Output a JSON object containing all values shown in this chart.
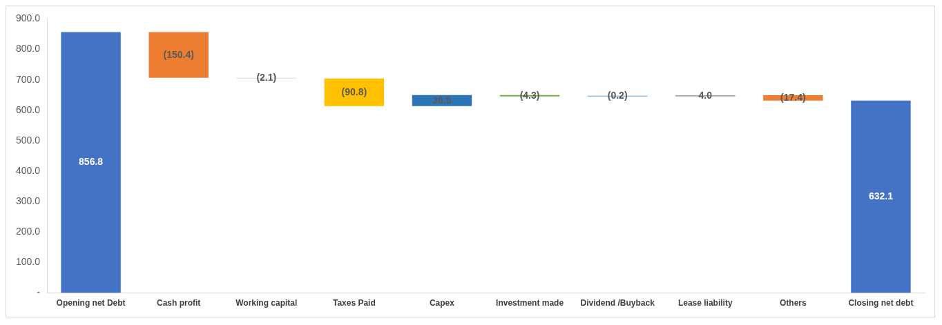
{
  "chart_data": {
    "type": "bar",
    "categories": [
      "Opening net Debt",
      "Cash profit",
      "Working capital",
      "Taxes Paid",
      "Capex",
      "Investment made",
      "Dividend /Buyback",
      "Lease liability",
      "Others",
      "Closing net debt"
    ],
    "values": [
      856.8,
      -150.4,
      -2.1,
      -90.8,
      36.5,
      -4.3,
      -0.2,
      4.0,
      -17.4,
      632.1
    ],
    "base": [
      0,
      856.8,
      706.4,
      704.3,
      613.5,
      650.0,
      645.7,
      645.5,
      649.5,
      0
    ],
    "colors": [
      "#4472c4",
      "#ed7d31",
      "#d9d9d9",
      "#ffc000",
      "#2e75b6",
      "#70ad47",
      "#5b9bd5",
      "#a5a5a5",
      "#ed7d31",
      "#4472c4"
    ],
    "value_labels": [
      "856.8",
      "(150.4)",
      "(2.1)",
      "(90.8)",
      "36.5",
      "(4.3)",
      "(0.2)",
      "4.0",
      "(17.4)",
      "632.1"
    ],
    "ylim": [
      0,
      900
    ],
    "yticks": [
      {
        "value": 0,
        "label": "-"
      },
      {
        "value": 100,
        "label": "100.0"
      },
      {
        "value": 200,
        "label": "200.0"
      },
      {
        "value": 300,
        "label": "300.0"
      },
      {
        "value": 400,
        "label": "400.0"
      },
      {
        "value": 500,
        "label": "500.0"
      },
      {
        "value": 600,
        "label": "600.0"
      },
      {
        "value": 700,
        "label": "700.0"
      },
      {
        "value": 800,
        "label": "800.0"
      },
      {
        "value": 900,
        "label": "900.0"
      }
    ],
    "grid": false,
    "legend": false
  }
}
